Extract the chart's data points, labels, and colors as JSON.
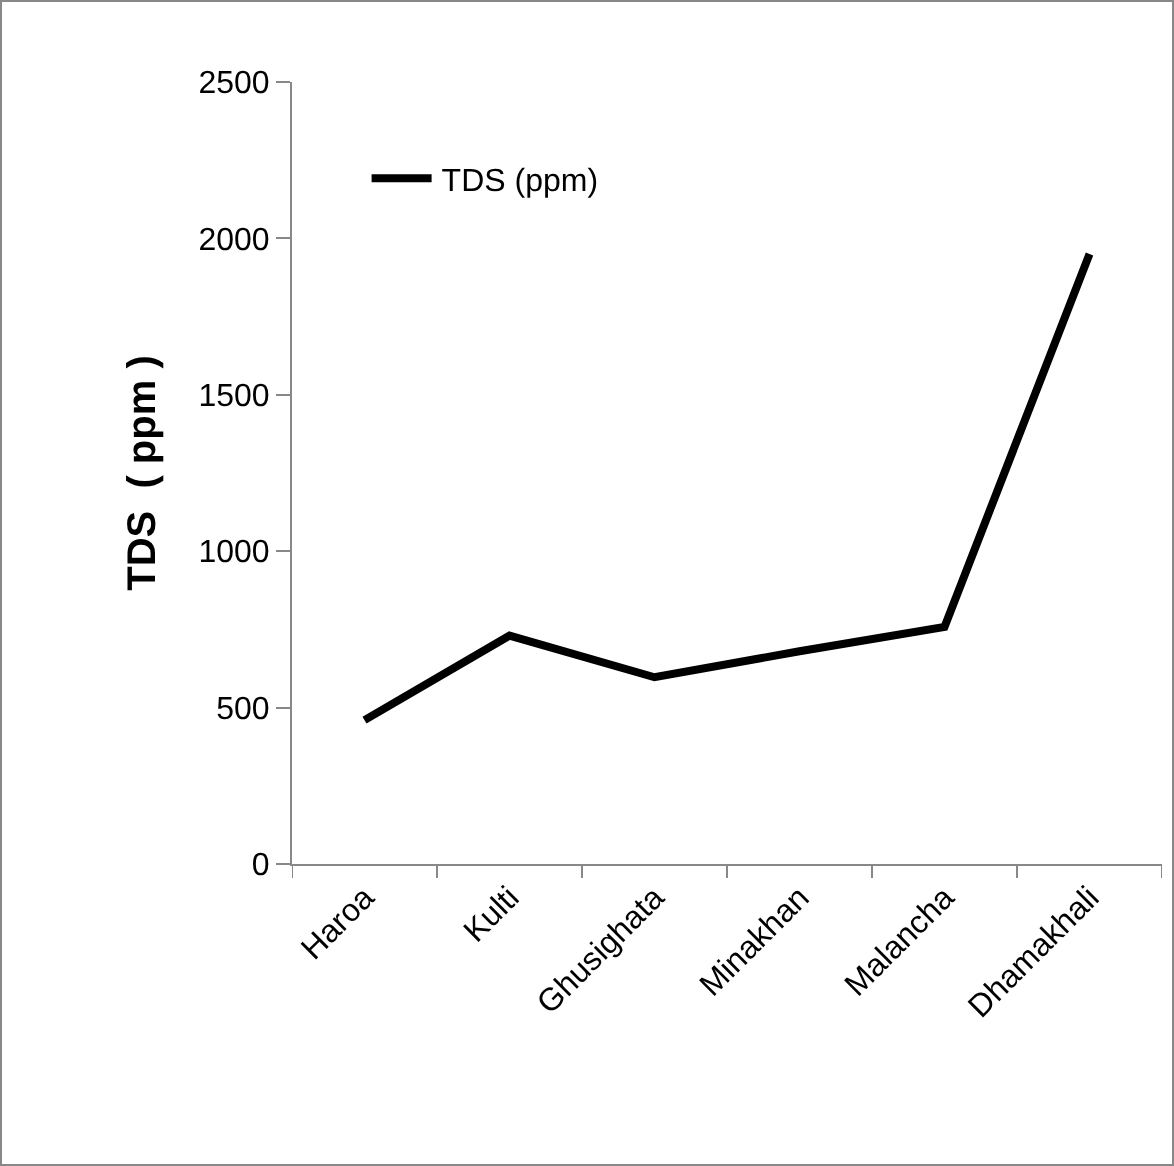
{
  "chart_data": {
    "type": "line",
    "ylabel": "TDS  ( ppm )",
    "categories": [
      "Haroa",
      "Kulti",
      "Ghusighata",
      "Minakhan",
      "Malancha",
      "Dhamakhali"
    ],
    "series": [
      {
        "name": "TDS (ppm)",
        "color": "#000000",
        "values": [
          460,
          730,
          597,
          680,
          758,
          1950
        ]
      }
    ],
    "ylim": [
      0,
      2500
    ],
    "yticks": [
      0,
      500,
      1000,
      1500,
      2000,
      2500
    ],
    "grid": false,
    "legend": "top left",
    "marker": "none",
    "line_style": "solid"
  }
}
